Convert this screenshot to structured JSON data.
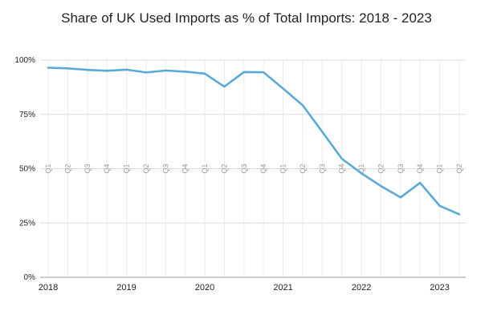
{
  "chart_data": {
    "type": "line",
    "title": "Share of UK Used Imports as % of Total Imports: 2018 - 2023",
    "xlabel": "",
    "ylabel": "",
    "ylim": [
      0,
      100
    ],
    "yticks": [
      {
        "value": 0,
        "label": "0%"
      },
      {
        "value": 25,
        "label": "25%"
      },
      {
        "value": 50,
        "label": "50%"
      },
      {
        "value": 75,
        "label": "75%"
      },
      {
        "value": 100,
        "label": "100%"
      }
    ],
    "year_ticks": [
      {
        "index": 0,
        "label": "2018"
      },
      {
        "index": 4,
        "label": "2019"
      },
      {
        "index": 8,
        "label": "2020"
      },
      {
        "index": 12,
        "label": "2021"
      },
      {
        "index": 16,
        "label": "2022"
      },
      {
        "index": 20,
        "label": "2023"
      }
    ],
    "categories": [
      "Q1",
      "Q2",
      "Q3",
      "Q4",
      "Q1",
      "Q2",
      "Q3",
      "Q4",
      "Q1",
      "Q2",
      "Q3",
      "Q4",
      "Q1",
      "Q2",
      "Q3",
      "Q4",
      "Q1",
      "Q2",
      "Q3",
      "Q4",
      "Q1",
      "Q2"
    ],
    "series": [
      {
        "values": [
          96.5,
          96.2,
          95.5,
          95.1,
          95.6,
          94.3,
          95.2,
          94.7,
          93.8,
          87.8,
          94.5,
          94.4,
          86.9,
          79.2,
          67.0,
          54.6,
          47.9,
          42.0,
          36.8,
          43.5,
          32.9,
          29.0
        ]
      }
    ],
    "grid": true,
    "legend": "none",
    "colors": {
      "line": "#5aaad8",
      "grid": "#dcdcdc",
      "axis": "#9a9a9a",
      "text": "#222222",
      "quarter_label": "#9a9a9a"
    }
  }
}
